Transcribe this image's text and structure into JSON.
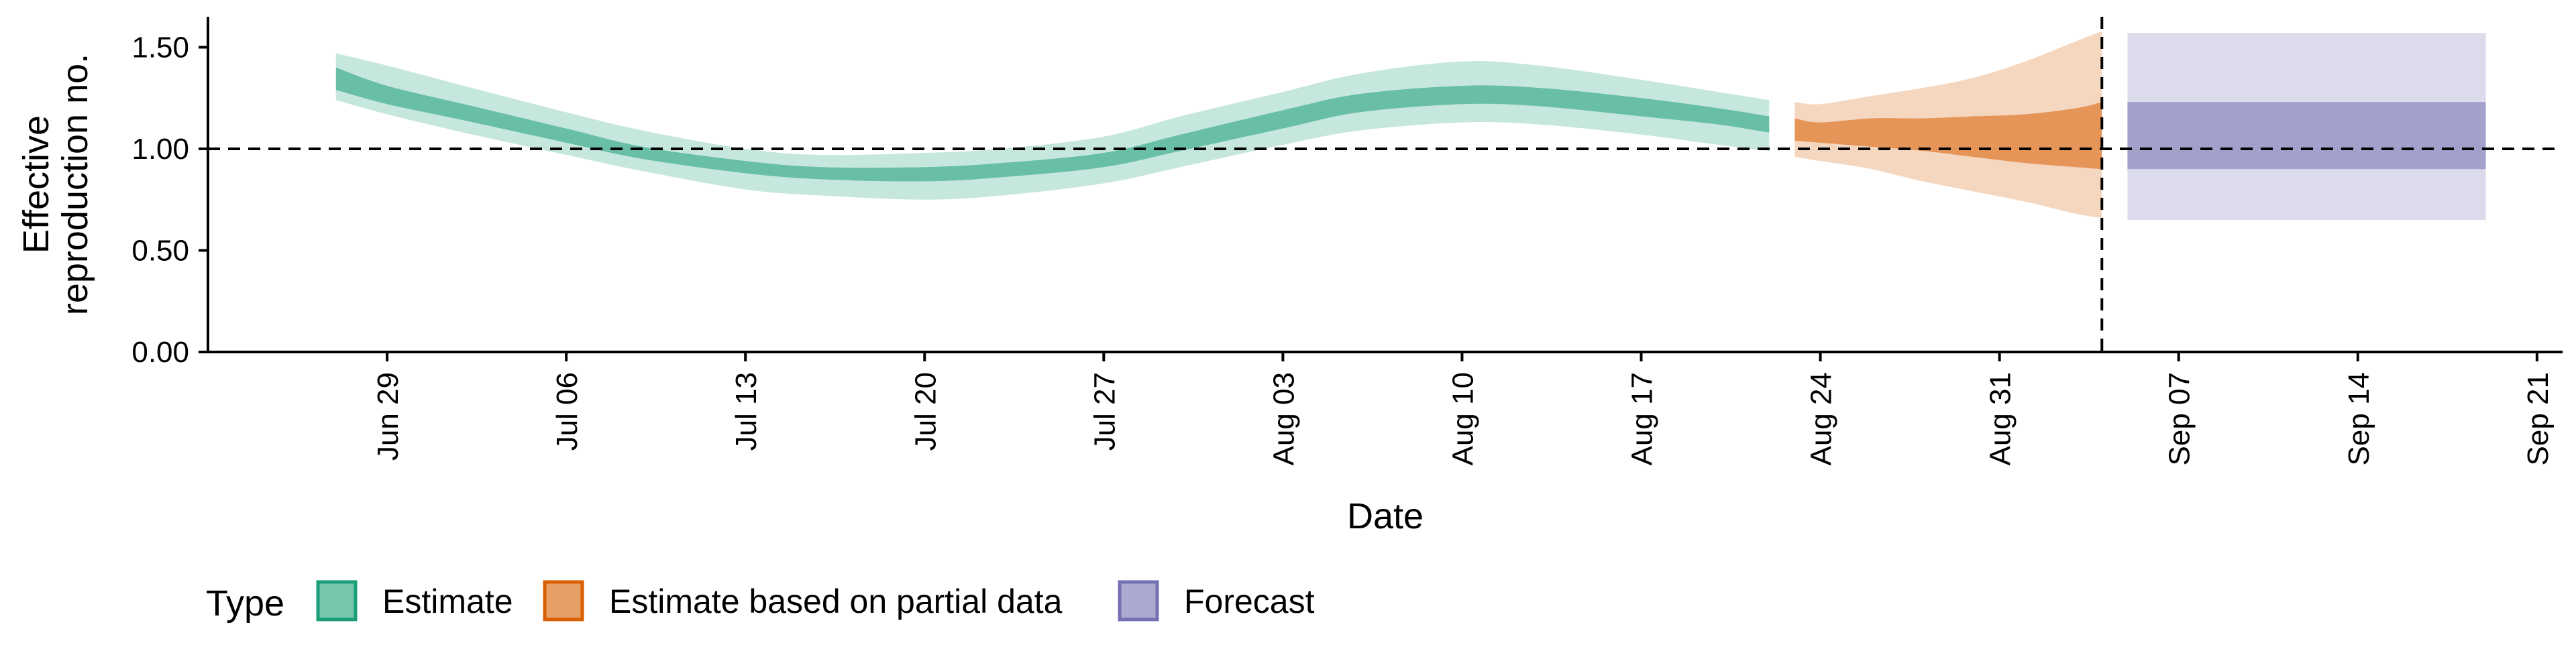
{
  "chart_data": {
    "type": "area",
    "xlabel": "Date",
    "ylabel": [
      "Effective",
      "reproduction no."
    ],
    "x_ticks": [
      "2020-06-29",
      "2020-07-06",
      "2020-07-13",
      "2020-07-20",
      "2020-07-27",
      "2020-08-03",
      "2020-08-10",
      "2020-08-17",
      "2020-08-24",
      "2020-08-31",
      "2020-09-07",
      "2020-09-14",
      "2020-09-21"
    ],
    "x_tick_labels": [
      "Jun 29",
      "Jul 06",
      "Jul 13",
      "Jul 20",
      "Jul 27",
      "Aug 03",
      "Aug 10",
      "Aug 17",
      "Aug 24",
      "Aug 31",
      "Sep 07",
      "Sep 14",
      "Sep 21"
    ],
    "y_ticks": [
      0,
      0.5,
      1.0,
      1.5
    ],
    "y_tick_labels": [
      "0.00",
      "0.50",
      "1.00",
      "1.50"
    ],
    "xlim": [
      "2020-06-22",
      "2020-09-22"
    ],
    "ylim": [
      0,
      1.65
    ],
    "hline": 1.0,
    "vline": "2020-09-04",
    "legend": {
      "title": "Type",
      "position": "bottom",
      "items": [
        "Estimate",
        "Estimate based on partial data",
        "Forecast"
      ]
    },
    "colors": {
      "estimate": "#1B9E77",
      "partial": "#D95F02",
      "forecast": "#7570B3"
    },
    "series": [
      {
        "name": "Estimate",
        "x": [
          "2020-06-27",
          "2020-06-29",
          "2020-07-02",
          "2020-07-06",
          "2020-07-09",
          "2020-07-13",
          "2020-07-16",
          "2020-07-20",
          "2020-07-23",
          "2020-07-27",
          "2020-07-30",
          "2020-08-03",
          "2020-08-06",
          "2020-08-10",
          "2020-08-13",
          "2020-08-17",
          "2020-08-20",
          "2020-08-22"
        ],
        "lower90": [
          1.24,
          1.17,
          1.08,
          0.97,
          0.89,
          0.8,
          0.77,
          0.75,
          0.77,
          0.83,
          0.91,
          1.02,
          1.09,
          1.13,
          1.12,
          1.07,
          1.02,
          0.99
        ],
        "lower50": [
          1.29,
          1.22,
          1.14,
          1.03,
          0.95,
          0.88,
          0.85,
          0.84,
          0.86,
          0.91,
          0.99,
          1.1,
          1.18,
          1.22,
          1.21,
          1.16,
          1.12,
          1.08
        ],
        "upper50": [
          1.4,
          1.31,
          1.22,
          1.1,
          1.01,
          0.94,
          0.91,
          0.91,
          0.93,
          0.98,
          1.07,
          1.19,
          1.27,
          1.31,
          1.3,
          1.25,
          1.2,
          1.16
        ],
        "upper90": [
          1.47,
          1.41,
          1.31,
          1.18,
          1.09,
          1.0,
          0.97,
          0.98,
          1.0,
          1.06,
          1.16,
          1.28,
          1.37,
          1.43,
          1.41,
          1.34,
          1.28,
          1.24
        ]
      },
      {
        "name": "Estimate based on partial data",
        "x": [
          "2020-08-23",
          "2020-08-24",
          "2020-08-26",
          "2020-08-28",
          "2020-08-30",
          "2020-09-01",
          "2020-09-03",
          "2020-09-04"
        ],
        "lower90": [
          0.96,
          0.94,
          0.9,
          0.84,
          0.79,
          0.74,
          0.68,
          0.66
        ],
        "lower50": [
          1.04,
          1.03,
          1.01,
          0.99,
          0.96,
          0.93,
          0.91,
          0.9
        ],
        "upper50": [
          1.15,
          1.13,
          1.15,
          1.15,
          1.16,
          1.17,
          1.2,
          1.23
        ],
        "upper90": [
          1.23,
          1.22,
          1.26,
          1.3,
          1.35,
          1.43,
          1.53,
          1.58
        ]
      },
      {
        "name": "Forecast",
        "x": [
          "2020-09-05",
          "2020-09-19"
        ],
        "lower90": [
          0.65,
          0.65
        ],
        "lower50": [
          0.9,
          0.9
        ],
        "upper50": [
          1.23,
          1.23
        ],
        "upper90": [
          1.57,
          1.57
        ]
      }
    ]
  }
}
